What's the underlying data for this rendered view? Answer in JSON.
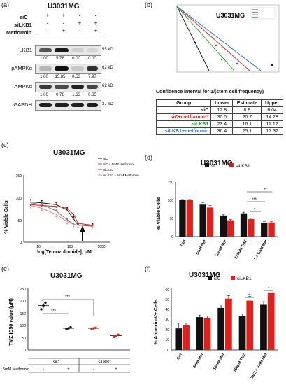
{
  "panels": {
    "a": {
      "label": "(a)",
      "title": "U3031MG",
      "treatments": [
        {
          "name": "siC",
          "values": [
            "+",
            "+",
            "-",
            "-"
          ]
        },
        {
          "name": "siLKB1",
          "values": [
            "-",
            "-",
            "+",
            "+"
          ]
        },
        {
          "name": "Metformin",
          "values": [
            "-",
            "+",
            "-",
            "+"
          ]
        }
      ],
      "blots": [
        {
          "name": "LKB1",
          "kd": "55 kD",
          "quant": [
            "1.00",
            "5.76",
            "0.00",
            "0.00"
          ]
        },
        {
          "name": "pAMPKα",
          "kd": "62 kD",
          "quant": [
            "1.00",
            "15.85",
            "0.53",
            "7.97"
          ]
        },
        {
          "name": "AMPKα",
          "kd": "62 kD",
          "quant": [
            "1.00",
            "0.78",
            "1.63",
            "0.85"
          ]
        },
        {
          "name": "GAPDH",
          "kd": "37 kD",
          "quant": []
        }
      ]
    },
    "b": {
      "label": "(b)",
      "title": "U3031MG",
      "ci_title": "Confidence interval for 1/(stem cell frequency)",
      "headers": [
        "Group",
        "Lower",
        "Estimate",
        "Upper"
      ],
      "rows": [
        {
          "group": "siC",
          "lower": "12.8",
          "estimate": "8.8",
          "upper": "6.04",
          "color": "#111111"
        },
        {
          "group": "siC+metformin**",
          "lower": "30.0",
          "estimate": "20.7",
          "upper": "14.28",
          "color": "#e0201b"
        },
        {
          "group": "siLKB1",
          "lower": "23.4",
          "estimate": "16.1",
          "upper": "11.12",
          "color": "#1aa01a"
        },
        {
          "group": "siLKB1+metformin",
          "lower": "36.4",
          "estimate": "25.1",
          "upper": "17.32",
          "color": "#1b6fd1"
        }
      ]
    },
    "c": {
      "label": "(c)",
      "title": "U3031MG",
      "ylabel": "% Viable Cells",
      "xlabel": "log[Temozolomide], μM",
      "yticks": [
        "150",
        "100",
        "50",
        "0"
      ],
      "xticks": [
        "10",
        "100",
        "1000"
      ]
    },
    "d": {
      "label": "(d)",
      "title": "U3031MG",
      "ylabel": "% Viable Cells",
      "yticks": [
        "150",
        "100",
        "50",
        "0"
      ],
      "sig": [
        "*",
        "***",
        "**"
      ]
    },
    "e": {
      "label": "(e)",
      "title": "U3031MG",
      "ylabel": "TMZ IC50 value (μM)",
      "yticks": [
        "250",
        "200",
        "150",
        "100",
        "50",
        "0"
      ],
      "group_labels": [
        "siC",
        "siLKB1"
      ],
      "met_label": "5mM Metformin",
      "met_values": [
        "-",
        "+",
        "-",
        "+"
      ],
      "sig": [
        "***",
        "***"
      ]
    },
    "f": {
      "label": "(f)",
      "title": "U3031MG",
      "ylabel": "% Annexin-V+ Cells",
      "yticks": [
        "60",
        "50",
        "40",
        "30",
        "20",
        "10",
        "0"
      ],
      "sig": [
        "*",
        "*"
      ]
    }
  },
  "chart_data": [
    {
      "type": "line",
      "panel": "b",
      "title": "U3031MG",
      "series": [
        {
          "name": "siC",
          "color": "#111111"
        },
        {
          "name": "siC+metformin",
          "color": "#e0201b"
        },
        {
          "name": "siLKB1",
          "color": "#1aa01a"
        },
        {
          "name": "siLKB1+metformin",
          "color": "#1b6fd1"
        }
      ]
    },
    {
      "type": "line",
      "panel": "c",
      "title": "U3031MG",
      "xlabel": "log[Temozolomide], μM",
      "ylabel": "% Viable Cells",
      "ylim": [
        0,
        150
      ],
      "x": [
        10,
        20,
        50,
        100,
        150,
        200,
        500
      ],
      "series": [
        {
          "name": "siC",
          "color": "#111111",
          "values": [
            90,
            88,
            84,
            72,
            52,
            38,
            36
          ]
        },
        {
          "name": "siC + 5mM Metformin",
          "color": "#777777",
          "values": [
            88,
            84,
            70,
            50,
            40,
            38,
            37
          ]
        },
        {
          "name": "siLKB1",
          "color": "#e0201b",
          "values": [
            84,
            82,
            80,
            76,
            62,
            42,
            38
          ]
        },
        {
          "name": "siLKB1 + 5mM Metformin",
          "color": "#f08080",
          "values": [
            82,
            76,
            62,
            46,
            40,
            38,
            37
          ]
        }
      ]
    },
    {
      "type": "bar",
      "panel": "d",
      "title": "U3031MG",
      "categories": [
        "Ctrl",
        "5mM Met",
        "10mM Met",
        "150μM TMZ",
        "TMZ + 5mM Met"
      ],
      "series": [
        {
          "name": "siC",
          "color": "#111111",
          "values": [
            100,
            88,
            58,
            64,
            37
          ],
          "errors": [
            2,
            6,
            2,
            3,
            4
          ]
        },
        {
          "name": "siLKB1",
          "color": "#e0201b",
          "values": [
            100,
            80,
            45,
            48,
            39
          ],
          "errors": [
            2,
            6,
            2,
            3,
            3
          ]
        }
      ],
      "ylim": [
        0,
        150
      ]
    },
    {
      "type": "scatter",
      "panel": "e",
      "title": "U3031MG",
      "categories": [
        "siC -",
        "siC +",
        "siLKB1 -",
        "siLKB1 +"
      ],
      "values": [
        180,
        88,
        88,
        58
      ],
      "points": [
        [
          165,
          180,
          192
        ],
        [
          84,
          88,
          92
        ],
        [
          86,
          88,
          90
        ],
        [
          53,
          58,
          62
        ]
      ],
      "colors": [
        "#111111",
        "#111111",
        "#e0201b",
        "#e0201b"
      ],
      "ylim": [
        0,
        250
      ]
    },
    {
      "type": "bar",
      "panel": "f",
      "title": "U3031MG",
      "categories": [
        "Ctrl",
        "5mM Met",
        "10mM Met",
        "150μM TMZ",
        "TMZ + 5mM Met"
      ],
      "series": [
        {
          "name": "siC",
          "color": "#111111",
          "values": [
            21,
            32,
            41,
            33,
            44
          ],
          "errors": [
            5,
            2,
            2,
            2,
            3
          ]
        },
        {
          "name": "siLKB1",
          "color": "#e0201b",
          "values": [
            24,
            31,
            50,
            48,
            56
          ],
          "errors": [
            2,
            2,
            3,
            4,
            2
          ]
        }
      ],
      "ylim": [
        0,
        60
      ]
    }
  ]
}
